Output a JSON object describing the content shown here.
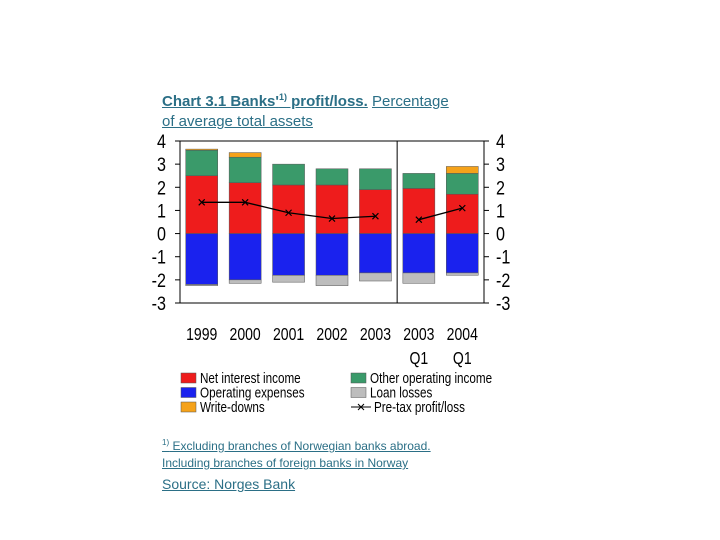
{
  "title": {
    "part1": "Chart 3.1 Banks'",
    "sup": "1)",
    "part2": " profit/loss.",
    "part3": "Percentage",
    "line2": "of average total assets"
  },
  "footnote": {
    "marker": "1)",
    "line1": " Excluding branches of Norwegian banks abroad.",
    "line2": "Including branches of foreign banks in Norway"
  },
  "source": "Source: Norges Bank",
  "colors": {
    "net_interest_income": "#ee1c1c",
    "other_operating_income": "#3a9a6a",
    "operating_expenses": "#1a22ee",
    "loan_losses": "#bdbdbd",
    "write_downs": "#f5a21a",
    "pretax": "#000000"
  },
  "chart_data": {
    "type": "bar",
    "stacked": true,
    "categories": [
      "1999",
      "2000",
      "2001",
      "2002",
      "2003",
      "2003 Q1",
      "2004 Q1"
    ],
    "tick_labels": [
      {
        "top": "1999",
        "bottom": ""
      },
      {
        "top": "2000",
        "bottom": ""
      },
      {
        "top": "2001",
        "bottom": ""
      },
      {
        "top": "2002",
        "bottom": ""
      },
      {
        "top": "2003",
        "bottom": ""
      },
      {
        "top": "2003",
        "bottom": "Q1"
      },
      {
        "top": "2004",
        "bottom": "Q1"
      }
    ],
    "series": [
      {
        "name": "Net interest income",
        "key": "net_interest_income",
        "stack": "pos",
        "values": [
          2.5,
          2.2,
          2.1,
          2.1,
          1.9,
          1.95,
          1.7
        ]
      },
      {
        "name": "Other operating income",
        "key": "other_operating_income",
        "stack": "pos",
        "values": [
          1.1,
          1.1,
          0.9,
          0.7,
          0.9,
          0.65,
          0.9
        ]
      },
      {
        "name": "Write-downs",
        "key": "write_downs",
        "stack": "pos",
        "values": [
          0.05,
          0.2,
          0,
          0,
          0,
          0,
          0.3
        ]
      },
      {
        "name": "Operating expenses",
        "key": "operating_expenses",
        "stack": "neg",
        "values": [
          -2.2,
          -2.0,
          -1.8,
          -1.8,
          -1.7,
          -1.7,
          -1.7
        ]
      },
      {
        "name": "Loan losses",
        "key": "loan_losses",
        "stack": "neg",
        "values": [
          -0.05,
          -0.15,
          -0.3,
          -0.45,
          -0.35,
          -0.45,
          -0.1
        ]
      },
      {
        "name": "Pre-tax profit/loss",
        "key": "pretax",
        "type": "line",
        "values": [
          1.35,
          1.35,
          0.9,
          0.65,
          0.75,
          0.6,
          1.1
        ]
      }
    ],
    "ylim": [
      -3,
      4
    ],
    "y_ticks_left": [
      "4",
      "3",
      "2",
      "1",
      "0",
      "-1",
      "-2",
      "-3"
    ],
    "y_ticks_right": [
      "4",
      "3",
      "2",
      "1",
      "0",
      "-1",
      "-2",
      "-3"
    ],
    "legend": [
      {
        "label": "Net interest income",
        "key": "net_interest_income",
        "marker": "box"
      },
      {
        "label": "Other operating income",
        "key": "other_operating_income",
        "marker": "box"
      },
      {
        "label": "Operating expenses",
        "key": "operating_expenses",
        "marker": "box"
      },
      {
        "label": "Loan losses",
        "key": "loan_losses",
        "marker": "box"
      },
      {
        "label": "Write-downs",
        "key": "write_downs",
        "marker": "box"
      },
      {
        "label": "Pre-tax profit/loss",
        "key": "pretax",
        "marker": "line"
      }
    ],
    "legend_position": "bottom",
    "divider_after_index": 4,
    "grid": false
  }
}
